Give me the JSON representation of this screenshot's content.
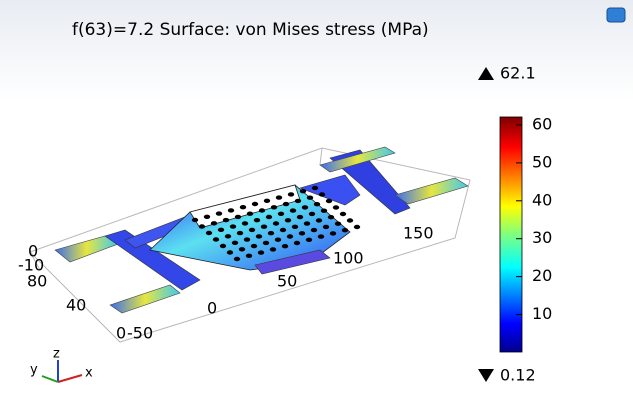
{
  "title": "f(63)=7.2   Surface: von Mises stress (MPa)",
  "colorbar": {
    "max": 62.1,
    "min": 0.12,
    "ticks": [
      10,
      20,
      30,
      40,
      50,
      60
    ]
  },
  "axis_labels": [
    "0",
    "-10",
    "80",
    "40",
    "0",
    "-50",
    "0",
    "50",
    "100",
    "150"
  ],
  "triad": {
    "x": "x",
    "y": "y",
    "z": "z"
  }
}
